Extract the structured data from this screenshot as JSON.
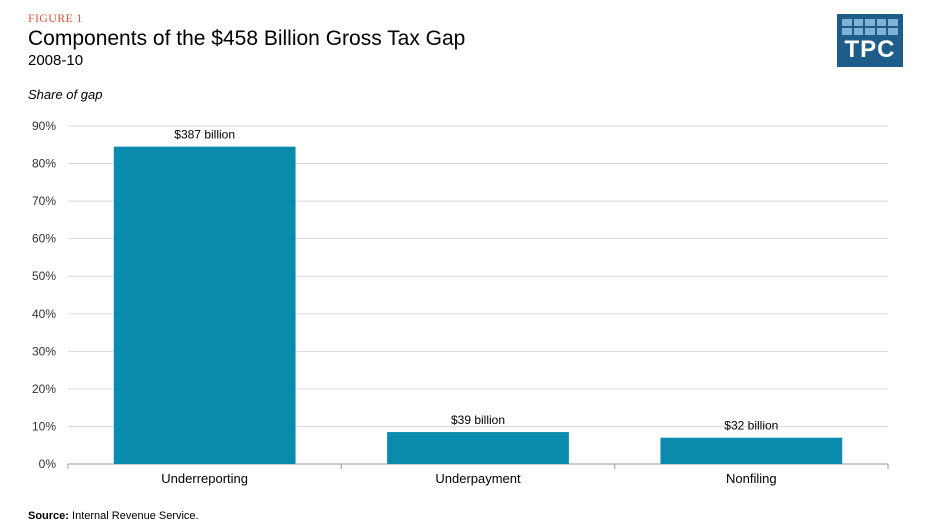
{
  "header": {
    "figure_label": "FIGURE 1",
    "title": "Components of the $458 Billion Gross Tax Gap",
    "subtitle": "2008-10"
  },
  "logo": {
    "text": "TPC",
    "color": "#1e5c8a",
    "icon": "tpc-logo"
  },
  "source": {
    "label": "Source:",
    "text": "Internal  Revenue  Service."
  },
  "chart_data": {
    "type": "bar",
    "categories": [
      "Underreporting",
      "Underpayment",
      "Nonfiling"
    ],
    "values": [
      84.5,
      8.5,
      7.0
    ],
    "data_labels": [
      "$387 billion",
      "$39 billion",
      "$32 billion"
    ],
    "ylabel": "Share of gap",
    "ylim": [
      0,
      90
    ],
    "yticks": [
      0,
      10,
      20,
      30,
      40,
      50,
      60,
      70,
      80,
      90
    ],
    "ytick_labels": [
      "0%",
      "10%",
      "20%",
      "30%",
      "40%",
      "50%",
      "60%",
      "70%",
      "80%",
      "90%"
    ],
    "grid": true,
    "bar_color": "#0a8aad"
  }
}
